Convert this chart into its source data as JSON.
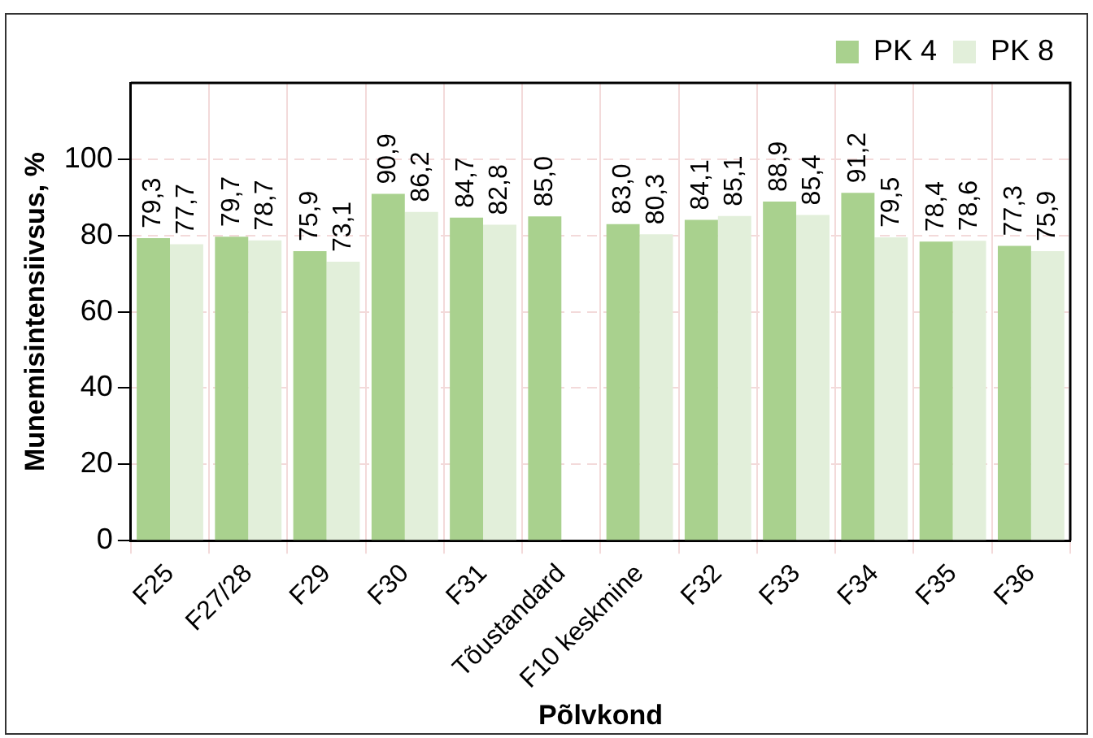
{
  "chart_data": {
    "type": "bar",
    "xlabel": "Põlvkond",
    "ylabel": "Munemisintensiivsus, %",
    "categories": [
      "F25",
      "F27/28",
      "F29",
      "F30",
      "F31",
      "Tõustandard",
      "F10 keskmine",
      "F32",
      "F33",
      "F34",
      "F35",
      "F36"
    ],
    "series": [
      {
        "name": "PK 4",
        "color": "#a9d18e",
        "values": [
          79.3,
          79.7,
          75.9,
          90.9,
          84.7,
          85.0,
          83.0,
          84.1,
          88.9,
          91.2,
          78.4,
          77.3
        ],
        "value_labels": [
          "79,3",
          "79,7",
          "75,9",
          "90,9",
          "84,7",
          "85,0",
          "83,0",
          "84,1",
          "88,9",
          "91,2",
          "78,4",
          "77,3"
        ]
      },
      {
        "name": "PK 8",
        "color": "#e2efda",
        "values": [
          77.7,
          78.7,
          73.1,
          86.2,
          82.8,
          null,
          80.3,
          85.1,
          85.4,
          79.5,
          78.6,
          75.9
        ],
        "value_labels": [
          "77,7",
          "78,7",
          "73,1",
          "86,2",
          "82,8",
          null,
          "80,3",
          "85,1",
          "85,4",
          "79,5",
          "78,6",
          "75,9"
        ]
      }
    ],
    "ylim": [
      0,
      120
    ],
    "yticks": [
      0,
      20,
      40,
      60,
      80,
      100
    ],
    "grid": true,
    "legend": "top right"
  }
}
